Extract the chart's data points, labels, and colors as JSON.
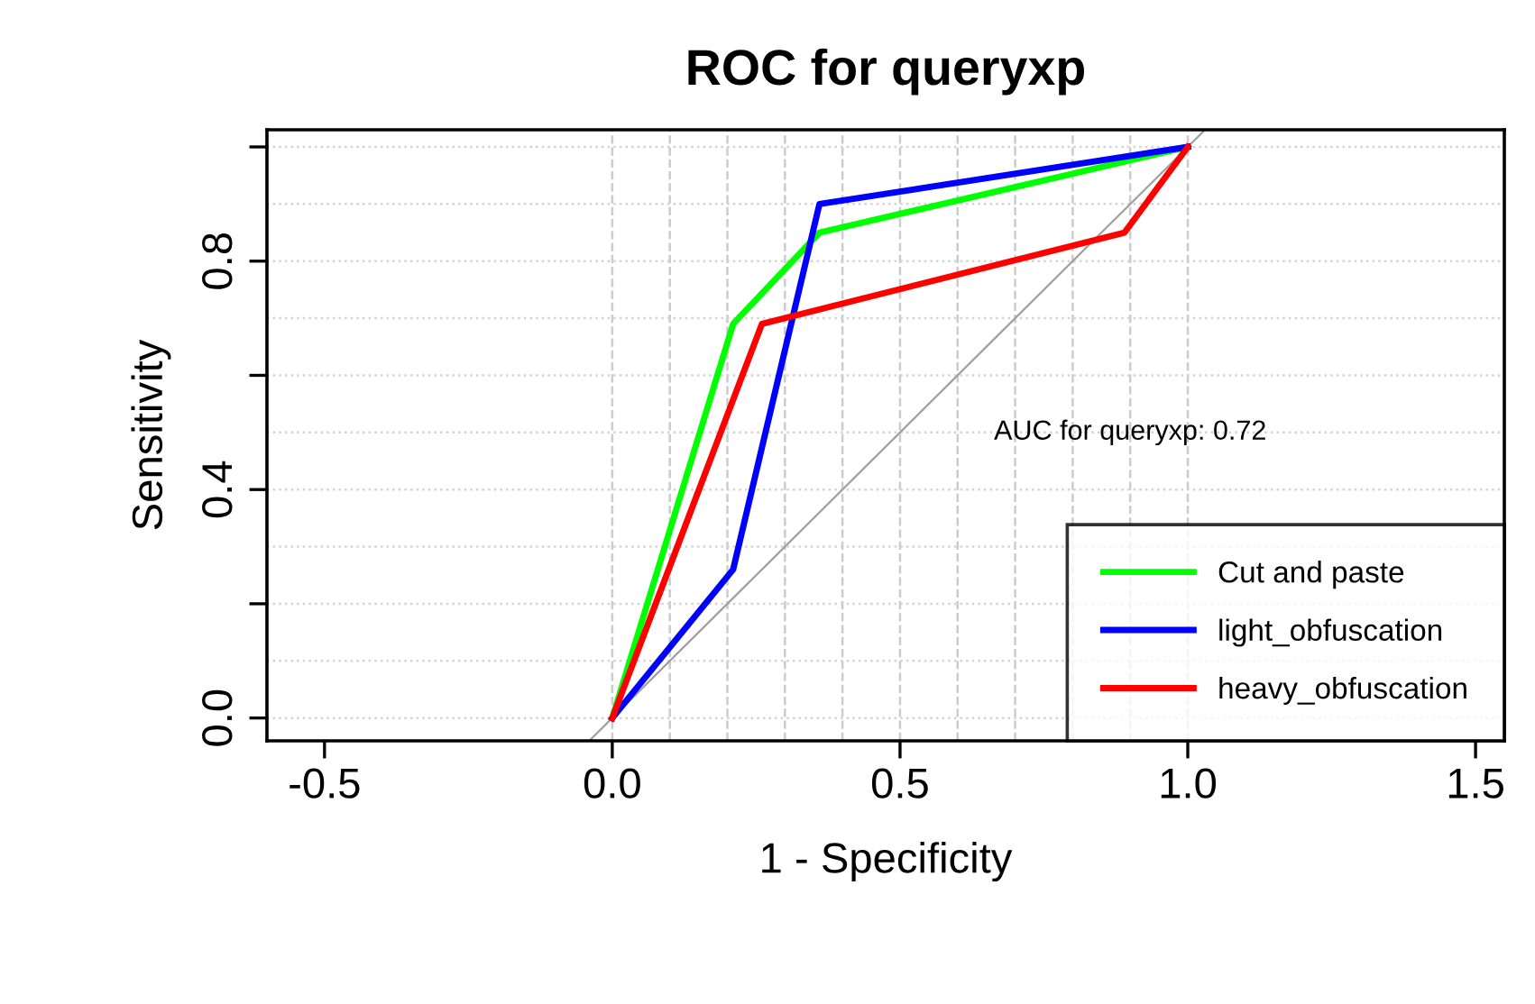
{
  "chart_data": {
    "type": "line",
    "title": "ROC for queryxp",
    "xlabel": "1 - Specificity",
    "ylabel": "Sensitivity",
    "annotations": [
      {
        "text": "AUC for queryxp: 0.72",
        "x": 0.9,
        "y": 0.5
      }
    ],
    "series": [
      {
        "x": [
          -0.038,
          1.03
        ],
        "values": [
          -0.038,
          1.03
        ],
        "color": "#a0a0a0"
      },
      {
        "name": "Cut and paste",
        "color": "#00ff00",
        "x": [
          0,
          0.21,
          0.36,
          1.0
        ],
        "values": [
          0,
          0.69,
          0.85,
          1.0
        ]
      },
      {
        "name": "light_obfuscation",
        "color": "#0000ff",
        "x": [
          0,
          0.21,
          0.36,
          1.0
        ],
        "values": [
          0,
          0.26,
          0.9,
          1.0
        ]
      },
      {
        "name": "heavy_obfuscation",
        "color": "#ff0000",
        "x": [
          0,
          0.26,
          0.89,
          1.0
        ],
        "values": [
          0,
          0.69,
          0.85,
          1.0
        ]
      }
    ],
    "xlim": [
      -0.6,
      1.55
    ],
    "ylim": [
      -0.04,
      1.03
    ],
    "xticks": [
      {
        "value": -0.5,
        "label": "-0.5"
      },
      {
        "value": 0,
        "label": "0.0"
      },
      {
        "value": 0.5,
        "label": "0.5"
      },
      {
        "value": 1.0,
        "label": "1.0"
      },
      {
        "value": 1.5,
        "label": "1.5"
      }
    ],
    "yticks": [
      {
        "value": 0,
        "label": "0.0"
      },
      {
        "value": 0.2,
        "label": null
      },
      {
        "value": 0.4,
        "label": "0.4"
      },
      {
        "value": 0.6,
        "label": null
      },
      {
        "value": 0.8,
        "label": "0.8"
      },
      {
        "value": 1.0,
        "label": null
      }
    ],
    "ref_lines": [
      {
        "axis": "x",
        "value": 0,
        "color": "#cccccc",
        "line_style": "dashed"
      },
      {
        "axis": "x",
        "value": 0.1,
        "color": "#cccccc",
        "line_style": "dashed"
      },
      {
        "axis": "x",
        "value": 0.2,
        "color": "#cccccc",
        "line_style": "dashed"
      },
      {
        "axis": "x",
        "value": 0.3,
        "color": "#cccccc",
        "line_style": "dashed"
      },
      {
        "axis": "x",
        "value": 0.4,
        "color": "#cccccc",
        "line_style": "dashed"
      },
      {
        "axis": "x",
        "value": 0.5,
        "color": "#cccccc",
        "line_style": "dashed"
      },
      {
        "axis": "x",
        "value": 0.6,
        "color": "#cccccc",
        "line_style": "dashed"
      },
      {
        "axis": "x",
        "value": 0.7,
        "color": "#cccccc",
        "line_style": "dashed"
      },
      {
        "axis": "x",
        "value": 0.8,
        "color": "#cccccc",
        "line_style": "dashed"
      },
      {
        "axis": "x",
        "value": 0.9,
        "color": "#cccccc",
        "line_style": "dashed"
      },
      {
        "axis": "x",
        "value": 1.0,
        "color": "#cccccc",
        "line_style": "dashed"
      },
      {
        "axis": "y",
        "value": 0,
        "color": "#d3d3d3",
        "line_style": "dotted"
      },
      {
        "axis": "y",
        "value": 0.1,
        "color": "#d3d3d3",
        "line_style": "dotted"
      },
      {
        "axis": "y",
        "value": 0.2,
        "color": "#d3d3d3",
        "line_style": "dotted"
      },
      {
        "axis": "y",
        "value": 0.3,
        "color": "#d3d3d3",
        "line_style": "dotted"
      },
      {
        "axis": "y",
        "value": 0.4,
        "color": "#d3d3d3",
        "line_style": "dotted"
      },
      {
        "axis": "y",
        "value": 0.5,
        "color": "#d3d3d3",
        "line_style": "dotted"
      },
      {
        "axis": "y",
        "value": 0.6,
        "color": "#d3d3d3",
        "line_style": "dotted"
      },
      {
        "axis": "y",
        "value": 0.7,
        "color": "#d3d3d3",
        "line_style": "dotted"
      },
      {
        "axis": "y",
        "value": 0.8,
        "color": "#d3d3d3",
        "line_style": "dotted"
      },
      {
        "axis": "y",
        "value": 0.9,
        "color": "#d3d3d3",
        "line_style": "dotted"
      },
      {
        "axis": "y",
        "value": 1.0,
        "color": "#d3d3d3",
        "line_style": "dotted"
      }
    ],
    "legend": "bottom right",
    "line_style": "solid"
  }
}
